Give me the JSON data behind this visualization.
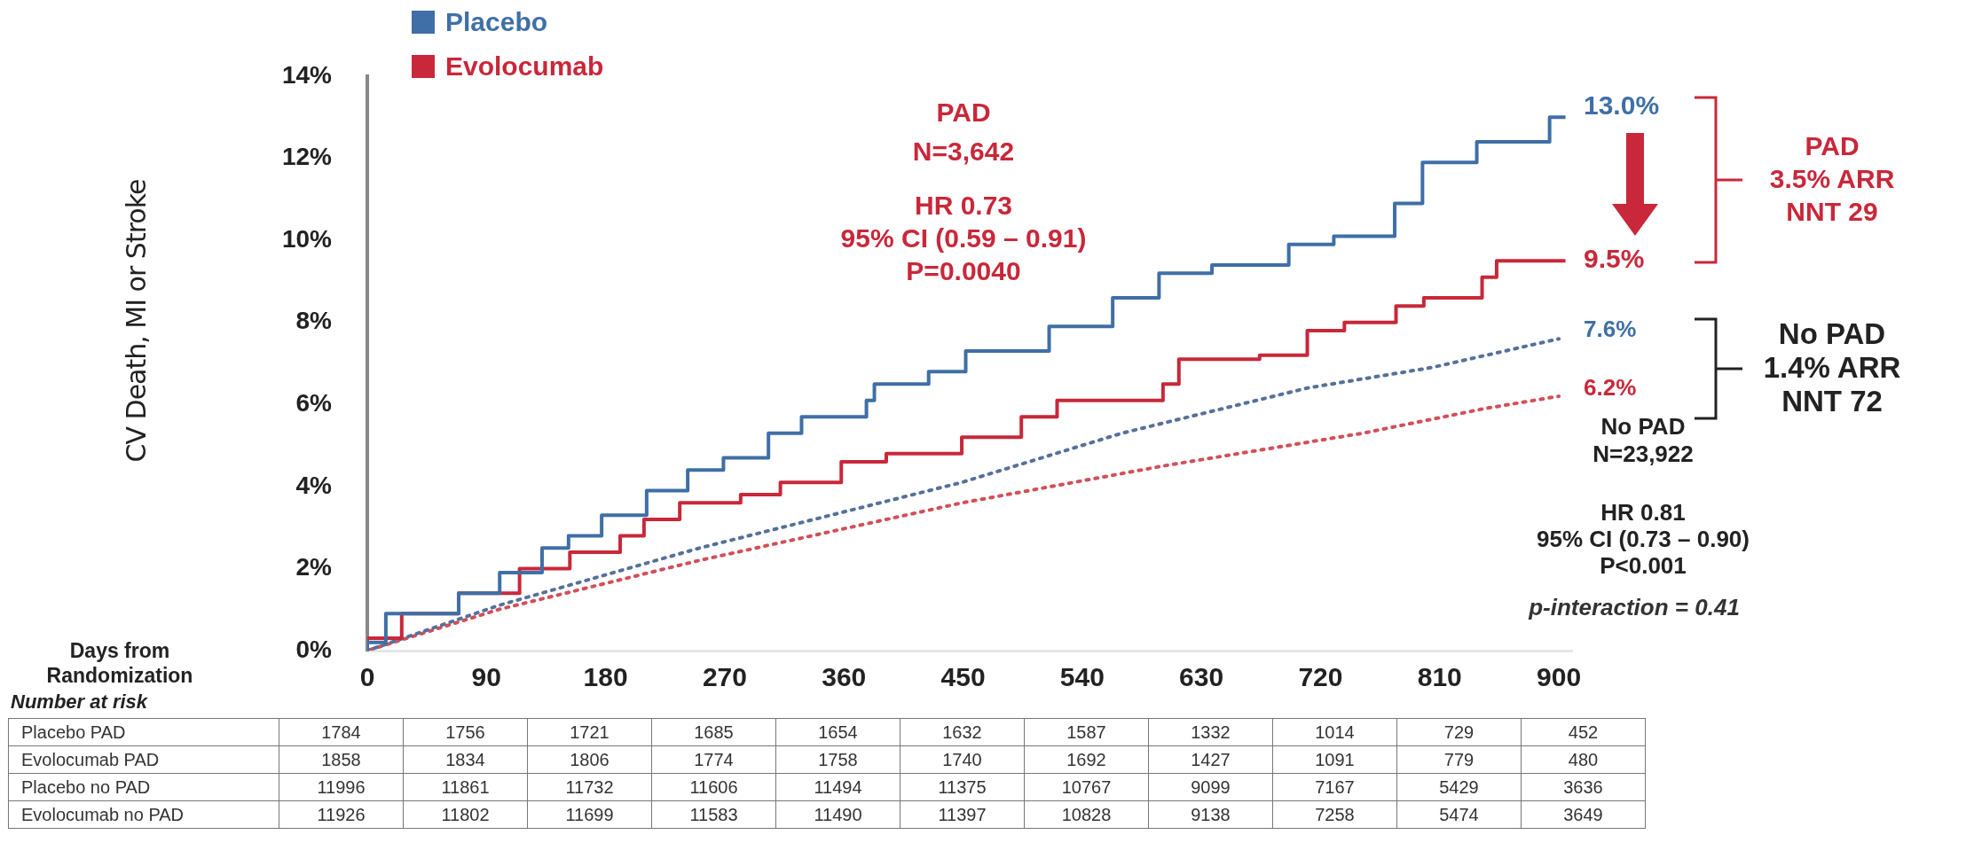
{
  "chart_data": {
    "type": "line",
    "ylabel": "CV Death, MI or Stroke",
    "xlabel": "Days from\nRandomization",
    "xlim": [
      0,
      910
    ],
    "xticks": [
      0,
      90,
      180,
      270,
      360,
      450,
      540,
      630,
      720,
      810,
      900
    ],
    "ylim": [
      0,
      14
    ],
    "yticks": [
      {
        "value": 0,
        "label": "0%"
      },
      {
        "value": 2,
        "label": "2%"
      },
      {
        "value": 4,
        "label": "4%"
      },
      {
        "value": 6,
        "label": "6%"
      },
      {
        "value": 8,
        "label": "8%"
      },
      {
        "value": 10,
        "label": "10%"
      },
      {
        "value": 12,
        "label": "12%"
      },
      {
        "value": 14,
        "label": "14%"
      }
    ],
    "grid": false,
    "legend": "top left",
    "marker": "none",
    "series": [
      {
        "name": "Placebo",
        "type": "step",
        "color": "#3f6fa6",
        "line_style": "solid",
        "x": [
          0,
          14,
          69,
          100,
          132,
          152,
          177,
          211,
          242,
          269,
          303,
          328,
          377,
          383,
          424,
          452,
          515,
          563,
          598,
          638,
          696,
          730,
          776,
          797,
          838,
          862,
          893,
          898,
          905
        ],
        "values": [
          0,
          0.2,
          0.9,
          1.4,
          1.9,
          2.5,
          2.8,
          3.3,
          3.9,
          4.4,
          4.7,
          5.3,
          5.7,
          6.1,
          6.5,
          6.8,
          7.3,
          7.9,
          8.6,
          9.2,
          9.4,
          9.9,
          10.1,
          10.9,
          11.9,
          12.4,
          12.4,
          13.0,
          13.0
        ]
      },
      {
        "name": "Evolocumab",
        "type": "step",
        "color": "#c8283a",
        "line_style": "solid",
        "x": [
          0,
          26,
          69,
          115,
          153,
          191,
          209,
          236,
          282,
          312,
          358,
          392,
          449,
          494,
          521,
          601,
          613,
          674,
          710,
          738,
          777,
          798,
          842,
          853,
          884,
          905
        ],
        "values": [
          0,
          0.3,
          0.9,
          1.4,
          2.0,
          2.4,
          2.8,
          3.2,
          3.6,
          3.8,
          4.1,
          4.6,
          4.8,
          5.2,
          5.7,
          6.1,
          6.5,
          7.1,
          7.2,
          7.8,
          8.0,
          8.4,
          8.6,
          9.1,
          9.5,
          9.5
        ]
      },
      {
        "color": "#56709a",
        "line_style": "dotted",
        "x": [
          0,
          99,
          251,
          449,
          570,
          710,
          804,
          900
        ],
        "values": [
          0,
          1.1,
          2.5,
          4.1,
          5.3,
          6.4,
          6.9,
          7.6
        ]
      },
      {
        "color": "#d0505a",
        "line_style": "dotted",
        "x": [
          0,
          99,
          251,
          449,
          601,
          752,
          844,
          900
        ],
        "values": [
          0,
          1.0,
          2.2,
          3.6,
          4.5,
          5.3,
          5.9,
          6.2
        ]
      }
    ],
    "annotations": [
      "PAD\nN=3,642",
      "HR 0.73\n95% CI (0.59 – 0.91)\nP=0.0040",
      "13.0%",
      "9.5%",
      "7.6%",
      "6.2%",
      "PAD\n3.5% ARR\nNNT 29",
      "No PAD\n1.4% ARR\nNNT 72",
      "No PAD\nN=23,922",
      "HR 0.81\n95% CI (0.73 – 0.90)\nP<0.001",
      "p-interaction = 0.41",
      "Number at risk",
      "Placebo PAD 1784 1756 1721 1685 1654 1632 1587 1332 1014 729 452",
      "Evolocumab PAD 1858 1834 1806 1774 1758 1740 1692 1427 1091 779 480",
      "Placebo no PAD 11996 11861 11732 11606 11494 11375 10767 9099 7167 5429 3636",
      "Evolocumab no PAD 11926 11802 11699 11583 11490 11397 10828 9138 7258 5474 3649"
    ]
  }
}
